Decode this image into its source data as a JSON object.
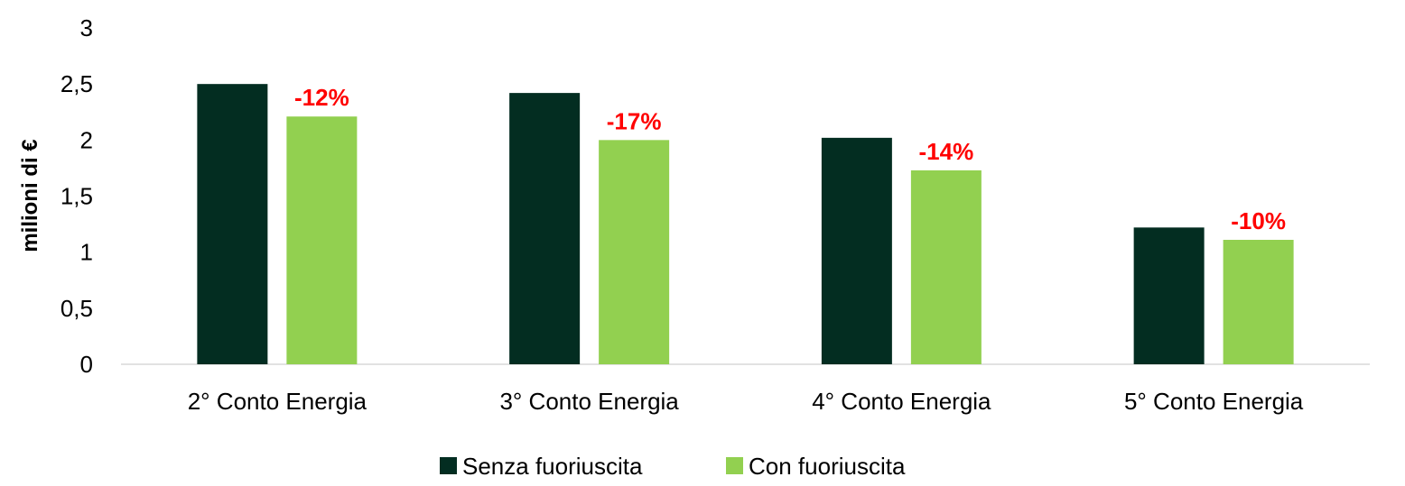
{
  "chart_data": {
    "type": "bar",
    "title": "",
    "xlabel": "",
    "ylabel": "milioni di €",
    "ylim": [
      0,
      3
    ],
    "yticks": [
      0,
      0.5,
      1,
      1.5,
      2,
      2.5,
      3
    ],
    "ytick_labels": [
      "0",
      "0,5",
      "1",
      "1,5",
      "2",
      "2,5",
      "3"
    ],
    "categories": [
      "2° Conto Energia",
      "3° Conto Energia",
      "4° Conto Energia",
      "5° Conto Energia"
    ],
    "series": [
      {
        "name": "Senza fuoriuscita",
        "color": "#032D21",
        "values": [
          2.5,
          2.42,
          2.02,
          1.22
        ]
      },
      {
        "name": "Con fuoriuscita",
        "color": "#92D050",
        "values": [
          2.21,
          2.0,
          1.73,
          1.11
        ]
      }
    ],
    "annotations": [
      "-12%",
      "-17%",
      "-14%",
      "-10%"
    ],
    "annotation_color": "#FF0000",
    "grid": false,
    "legend": "bottom"
  }
}
